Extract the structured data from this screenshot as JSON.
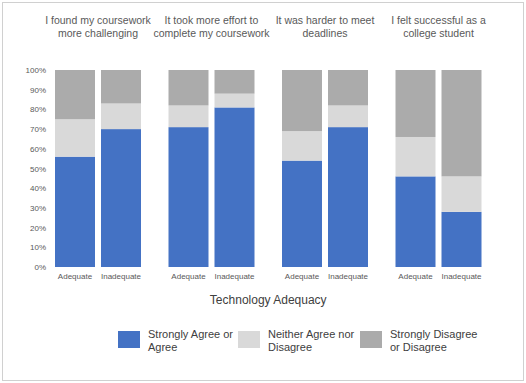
{
  "chart_data": [
    {
      "type": "bar",
      "stacked": true,
      "title": "I found my coursework more challenging",
      "x_label": "Technology Adequacy",
      "legend": "bottom",
      "grid": false,
      "categories": [
        "Adequate",
        "Inadequate"
      ],
      "ylim": [
        0,
        100
      ],
      "yticks": [
        {
          "value": 0,
          "label": "0%"
        },
        {
          "value": 10,
          "label": "10%"
        },
        {
          "value": 20,
          "label": "20%"
        },
        {
          "value": 30,
          "label": "30%"
        },
        {
          "value": 40,
          "label": "40%"
        },
        {
          "value": 50,
          "label": "50%"
        },
        {
          "value": 60,
          "label": "60%"
        },
        {
          "value": 70,
          "label": "70%"
        },
        {
          "value": 80,
          "label": "80%"
        },
        {
          "value": 90,
          "label": "90%"
        },
        {
          "value": 100,
          "label": "100%"
        }
      ],
      "series": [
        {
          "name": "Strongly Agree or Agree",
          "color": "#4472c4",
          "values": [
            56,
            70
          ]
        },
        {
          "name": "Neither Agree nor Disagree",
          "color": "#d9d9d9",
          "values": [
            19,
            13
          ]
        },
        {
          "name": "Strongly Disagree or Disagree",
          "color": "#ababab",
          "values": [
            25,
            17
          ]
        }
      ]
    },
    {
      "type": "bar",
      "stacked": true,
      "title": "It took more effort to complete my coursework",
      "grid": false,
      "tick_labels": "x",
      "categories": [
        "Adequate",
        "Inadequate"
      ],
      "ylim": [
        0,
        100
      ],
      "series": [
        {
          "color": "#4472c4",
          "values": [
            71,
            81
          ]
        },
        {
          "color": "#d9d9d9",
          "values": [
            11,
            7
          ]
        },
        {
          "color": "#ababab",
          "values": [
            18,
            12
          ]
        }
      ]
    },
    {
      "type": "bar",
      "stacked": true,
      "title": "It was harder to meet deadlines",
      "grid": false,
      "tick_labels": "x",
      "categories": [
        "Adequate",
        "Inadequate"
      ],
      "ylim": [
        0,
        100
      ],
      "series": [
        {
          "color": "#4472c4",
          "values": [
            54,
            71
          ]
        },
        {
          "color": "#d9d9d9",
          "values": [
            15,
            11
          ]
        },
        {
          "color": "#ababab",
          "values": [
            31,
            18
          ]
        }
      ]
    },
    {
      "type": "bar",
      "stacked": true,
      "title": "I felt successful as a college student",
      "grid": false,
      "tick_labels": "x",
      "categories": [
        "Adequate",
        "Inadequate"
      ],
      "ylim": [
        0,
        100
      ],
      "series": [
        {
          "color": "#4472c4",
          "values": [
            46,
            28
          ]
        },
        {
          "color": "#d9d9d9",
          "values": [
            20,
            18
          ]
        },
        {
          "color": "#ababab",
          "values": [
            34,
            54
          ]
        }
      ]
    }
  ]
}
